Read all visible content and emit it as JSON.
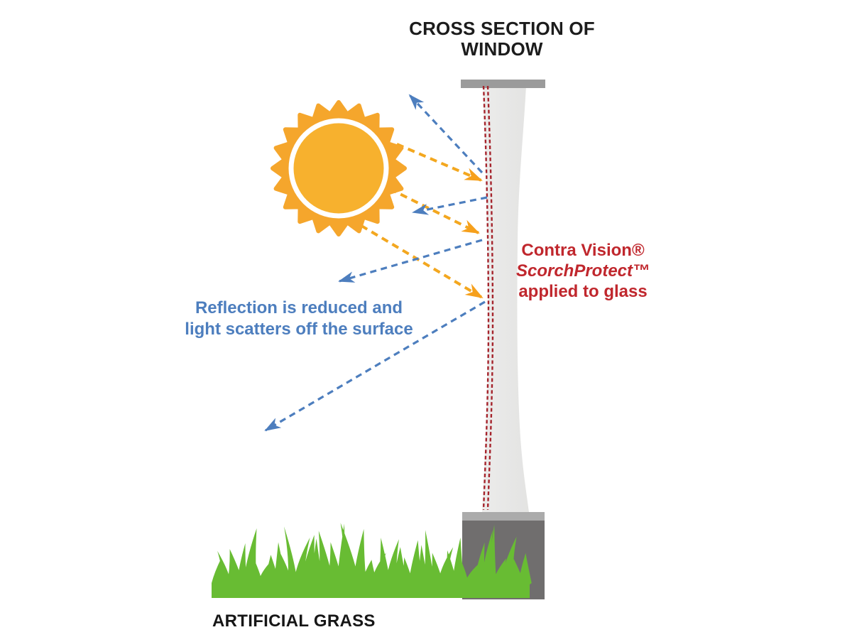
{
  "title": {
    "text": "CROSS SECTION OF WINDOW"
  },
  "labels": {
    "film": {
      "line1": "Contra Vision®",
      "line2": "ScorchProtect™",
      "line3": "applied to glass"
    },
    "reflection": {
      "line1": "Reflection is reduced and",
      "line2": "light scatters off the surface"
    },
    "grass": {
      "text": "ARTIFICIAL GRASS"
    }
  },
  "icons": {
    "sun": "sun-icon",
    "sun_ray_arrow": "sun-ray-arrow-icon",
    "reflection_arrow": "reflection-arrow-icon",
    "window": "window-cross-section-graphic",
    "film_line": "scorchprotect-film-dashed-line",
    "grass": "artificial-grass-graphic"
  },
  "colors": {
    "background": "#FFFFFF",
    "title_text": "#1C1C1C",
    "film_text": "#C0272D",
    "reflection_text": "#4D7EBE",
    "grass_text": "#161616",
    "sun_outer": "#F5A62C",
    "sun_inner": "#F7B12E",
    "sun_ray": "#F3A71F",
    "sun_ray_head": "#F6A01C",
    "reflection_ray": "#4D7EBE",
    "film_line": "#A5242C",
    "glass": "#E8E8E7",
    "frame_cap": "#9B9B9B",
    "sill_top": "#ABABAB",
    "sill_body": "#706E6E",
    "grass_green": "#68BC33"
  },
  "diagram": {
    "sun_ray_count": 3,
    "reflected_ray_count": 4
  }
}
